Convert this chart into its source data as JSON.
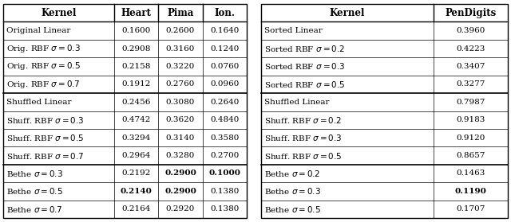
{
  "table1": {
    "headers": [
      "Kernel",
      "Heart",
      "Pima",
      "Ion."
    ],
    "groups": [
      {
        "rows": [
          {
            "kernel": "Original Linear",
            "heart": "0.1600",
            "pima": "0.2600",
            "ion": "0.1640",
            "bold": []
          },
          {
            "kernel": "Orig. RBF $\\sigma = 0.3$",
            "heart": "0.2908",
            "pima": "0.3160",
            "ion": "0.1240",
            "bold": []
          },
          {
            "kernel": "Orig. RBF $\\sigma = 0.5$",
            "heart": "0.2158",
            "pima": "0.3220",
            "ion": "0.0760",
            "bold": []
          },
          {
            "kernel": "Orig. RBF $\\sigma = 0.7$",
            "heart": "0.1912",
            "pima": "0.2760",
            "ion": "0.0960",
            "bold": []
          }
        ]
      },
      {
        "rows": [
          {
            "kernel": "Shuffled Linear",
            "heart": "0.2456",
            "pima": "0.3080",
            "ion": "0.2640",
            "bold": []
          },
          {
            "kernel": "Shuff. RBF $\\sigma = 0.3$",
            "heart": "0.4742",
            "pima": "0.3620",
            "ion": "0.4840",
            "bold": []
          },
          {
            "kernel": "Shuff. RBF $\\sigma = 0.5$",
            "heart": "0.3294",
            "pima": "0.3140",
            "ion": "0.3580",
            "bold": []
          },
          {
            "kernel": "Shuff. RBF $\\sigma = 0.7$",
            "heart": "0.2964",
            "pima": "0.3280",
            "ion": "0.2700",
            "bold": []
          }
        ]
      },
      {
        "rows": [
          {
            "kernel": "Bethe $\\sigma = 0.3$",
            "heart": "0.2192",
            "pima": "0.2900",
            "ion": "0.1000",
            "bold": [
              "pima",
              "ion"
            ]
          },
          {
            "kernel": "Bethe $\\sigma = 0.5$",
            "heart": "0.2140",
            "pima": "0.2900",
            "ion": "0.1380",
            "bold": [
              "heart",
              "pima"
            ]
          },
          {
            "kernel": "Bethe $\\sigma = 0.7$",
            "heart": "0.2164",
            "pima": "0.2920",
            "ion": "0.1380",
            "bold": []
          }
        ]
      }
    ]
  },
  "table2": {
    "headers": [
      "Kernel",
      "PenDigits"
    ],
    "groups": [
      {
        "rows": [
          {
            "kernel": "Sorted Linear",
            "pendigits": "0.3960",
            "bold": []
          },
          {
            "kernel": "Sorted RBF $\\sigma = 0.2$",
            "pendigits": "0.4223",
            "bold": []
          },
          {
            "kernel": "Sorted RBF $\\sigma = 0.3$",
            "pendigits": "0.3407",
            "bold": []
          },
          {
            "kernel": "Sorted RBF $\\sigma = 0.5$",
            "pendigits": "0.3277",
            "bold": []
          }
        ]
      },
      {
        "rows": [
          {
            "kernel": "Shuffled Linear",
            "pendigits": "0.7987",
            "bold": []
          },
          {
            "kernel": "Shuff. RBF $\\sigma = 0.2$",
            "pendigits": "0.9183",
            "bold": []
          },
          {
            "kernel": "Shuff. RBF $\\sigma = 0.3$",
            "pendigits": "0.9120",
            "bold": []
          },
          {
            "kernel": "Shuff. RBF $\\sigma = 0.5$",
            "pendigits": "0.8657",
            "bold": []
          }
        ]
      },
      {
        "rows": [
          {
            "kernel": "Bethe $\\sigma = 0.2$",
            "pendigits": "0.1463",
            "bold": []
          },
          {
            "kernel": "Bethe $\\sigma = 0.3$",
            "pendigits": "0.1190",
            "bold": [
              "pendigits"
            ]
          },
          {
            "kernel": "Bethe $\\sigma = 0.5$",
            "pendigits": "0.1707",
            "bold": []
          }
        ]
      }
    ]
  },
  "fontsize": 7.5,
  "header_fontsize": 8.5,
  "lw_outer": 1.0,
  "lw_inner": 0.5,
  "lw_group": 1.2
}
